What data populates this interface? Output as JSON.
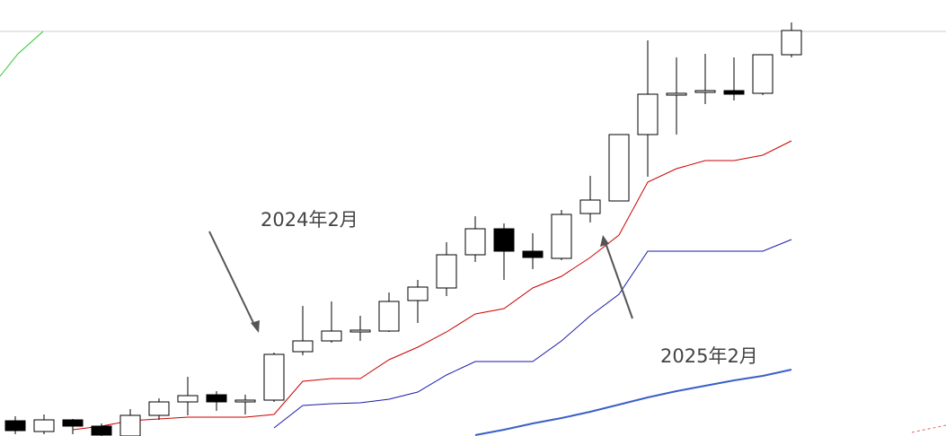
{
  "chart_data": {
    "type": "candlestick",
    "categories": [
      null,
      null,
      null,
      null,
      null,
      null,
      null,
      null,
      null,
      null,
      null,
      null,
      null,
      null,
      null,
      null,
      null,
      null,
      null,
      null,
      null,
      null,
      null,
      null,
      null,
      null,
      null,
      null
    ],
    "open": [
      17,
      5,
      18,
      11,
      0,
      23,
      38,
      46,
      38,
      40,
      94,
      106,
      116,
      117,
      151,
      165,
      202,
      231,
      206,
      198,
      248,
      262,
      336,
      380,
      383,
      385,
      382,
      425
    ],
    "high": [
      22,
      24,
      19,
      14,
      30,
      42,
      66,
      50,
      46,
      93,
      145,
      150,
      134,
      160,
      174,
      216,
      245,
      237,
      226,
      252,
      290,
      336,
      441,
      422,
      426,
      422,
      425,
      461
    ],
    "low": [
      2,
      2,
      2,
      0,
      0,
      18,
      23,
      28,
      24,
      38,
      90,
      104,
      106,
      116,
      126,
      156,
      194,
      174,
      186,
      196,
      238,
      262,
      289,
      336,
      370,
      374,
      380,
      422
    ],
    "close": [
      6,
      18,
      11,
      1,
      23,
      38,
      45,
      38,
      40,
      91,
      106,
      117,
      118,
      150,
      166,
      202,
      231,
      206,
      199,
      247,
      263,
      336,
      381,
      382,
      385,
      381,
      425,
      452
    ],
    "up_color": "#ffffff",
    "down_color": "#000000",
    "series": [
      {
        "color": "#cc0000",
        "values": [
          null,
          null,
          7,
          11,
          17,
          19,
          21,
          21,
          21,
          24,
          61,
          64,
          64,
          85,
          99,
          116,
          136,
          142,
          165,
          178,
          199,
          224,
          283,
          298,
          307,
          307,
          313,
          329
        ]
      },
      {
        "color": "#1a1aaa",
        "values": [
          null,
          null,
          null,
          null,
          null,
          null,
          null,
          null,
          null,
          9,
          34,
          36,
          37,
          41,
          49,
          68,
          83,
          83,
          83,
          106,
          134,
          158,
          206,
          206,
          206,
          206,
          206,
          219
        ]
      },
      {
        "color": "#3a5fc8",
        "values": [
          null,
          null,
          null,
          null,
          null,
          null,
          null,
          null,
          null,
          null,
          null,
          null,
          null,
          null,
          null,
          null,
          1,
          7,
          14,
          20,
          27,
          35,
          43,
          50,
          56,
          62,
          67,
          74
        ]
      }
    ],
    "ylim": [
      0,
      486
    ],
    "annotations": [
      "2024年2月",
      "2025年2月"
    ]
  }
}
